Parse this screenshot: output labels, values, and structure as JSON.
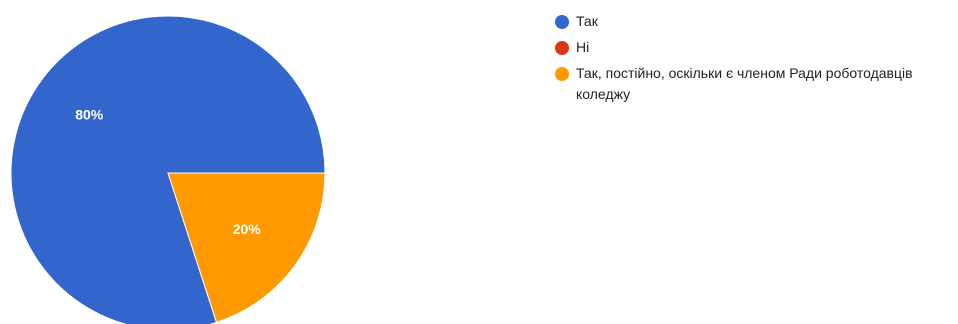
{
  "chart_data": {
    "type": "pie",
    "categories": [
      "Так",
      "Ні",
      "Так, постійно, оскільки є членом Ради роботодавців коледжу"
    ],
    "values": [
      80,
      0,
      20
    ],
    "value_labels": [
      "80%",
      "",
      "20%"
    ],
    "colors": [
      "#3366cc",
      "#dc3912",
      "#ff9900"
    ],
    "title": "",
    "legend_position": "right"
  }
}
